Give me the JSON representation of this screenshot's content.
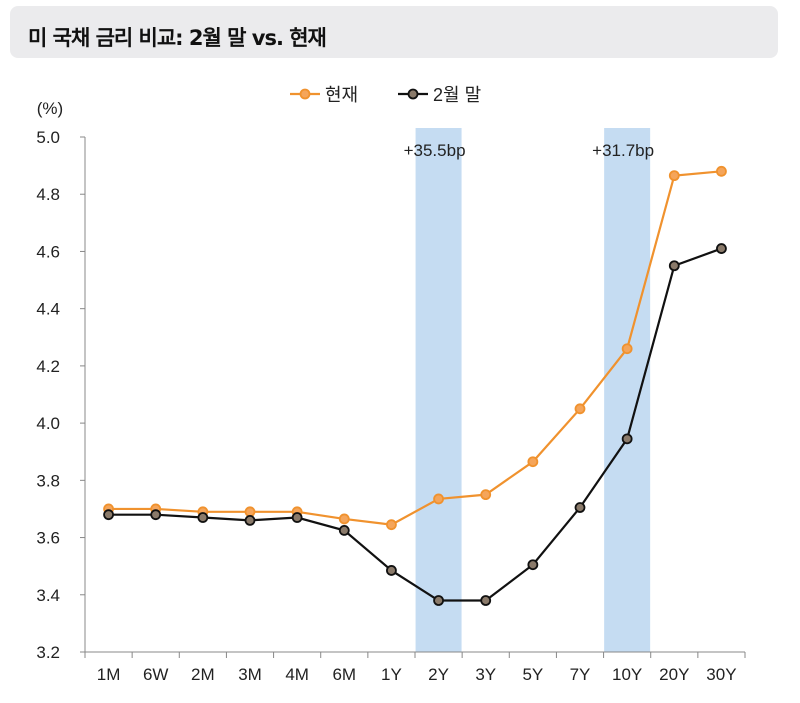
{
  "chart_data": {
    "type": "line",
    "title": "미 국채 금리 비교: 2월 말 vs. 현재",
    "ylabel": "(%)",
    "xlabel": "",
    "ylim": [
      3.2,
      5.0
    ],
    "yticks": [
      "3.2",
      "3.4",
      "3.6",
      "3.8",
      "4.0",
      "4.2",
      "4.4",
      "4.6",
      "4.8",
      "5.0"
    ],
    "grid": false,
    "legend": "top-center",
    "categories": [
      "1M",
      "6W",
      "2M",
      "3M",
      "4M",
      "6M",
      "1Y",
      "2Y",
      "3Y",
      "5Y",
      "7Y",
      "10Y",
      "20Y",
      "30Y"
    ],
    "series": [
      {
        "name": "현재",
        "color": "#f0922e",
        "values": [
          3.7,
          3.7,
          3.69,
          3.69,
          3.69,
          3.665,
          3.645,
          3.735,
          3.75,
          3.865,
          4.05,
          4.26,
          4.865,
          4.88
        ]
      },
      {
        "name": "2월 말",
        "color": "#111111",
        "values": [
          3.68,
          3.68,
          3.67,
          3.66,
          3.67,
          3.625,
          3.485,
          3.38,
          3.38,
          3.505,
          3.705,
          3.945,
          4.55,
          4.61
        ]
      }
    ],
    "highlights": [
      {
        "category": "2Y",
        "label": "+35.5bp",
        "color": "#c5dcf2"
      },
      {
        "category": "10Y",
        "label": "+31.7bp",
        "color": "#c5dcf2"
      }
    ]
  }
}
